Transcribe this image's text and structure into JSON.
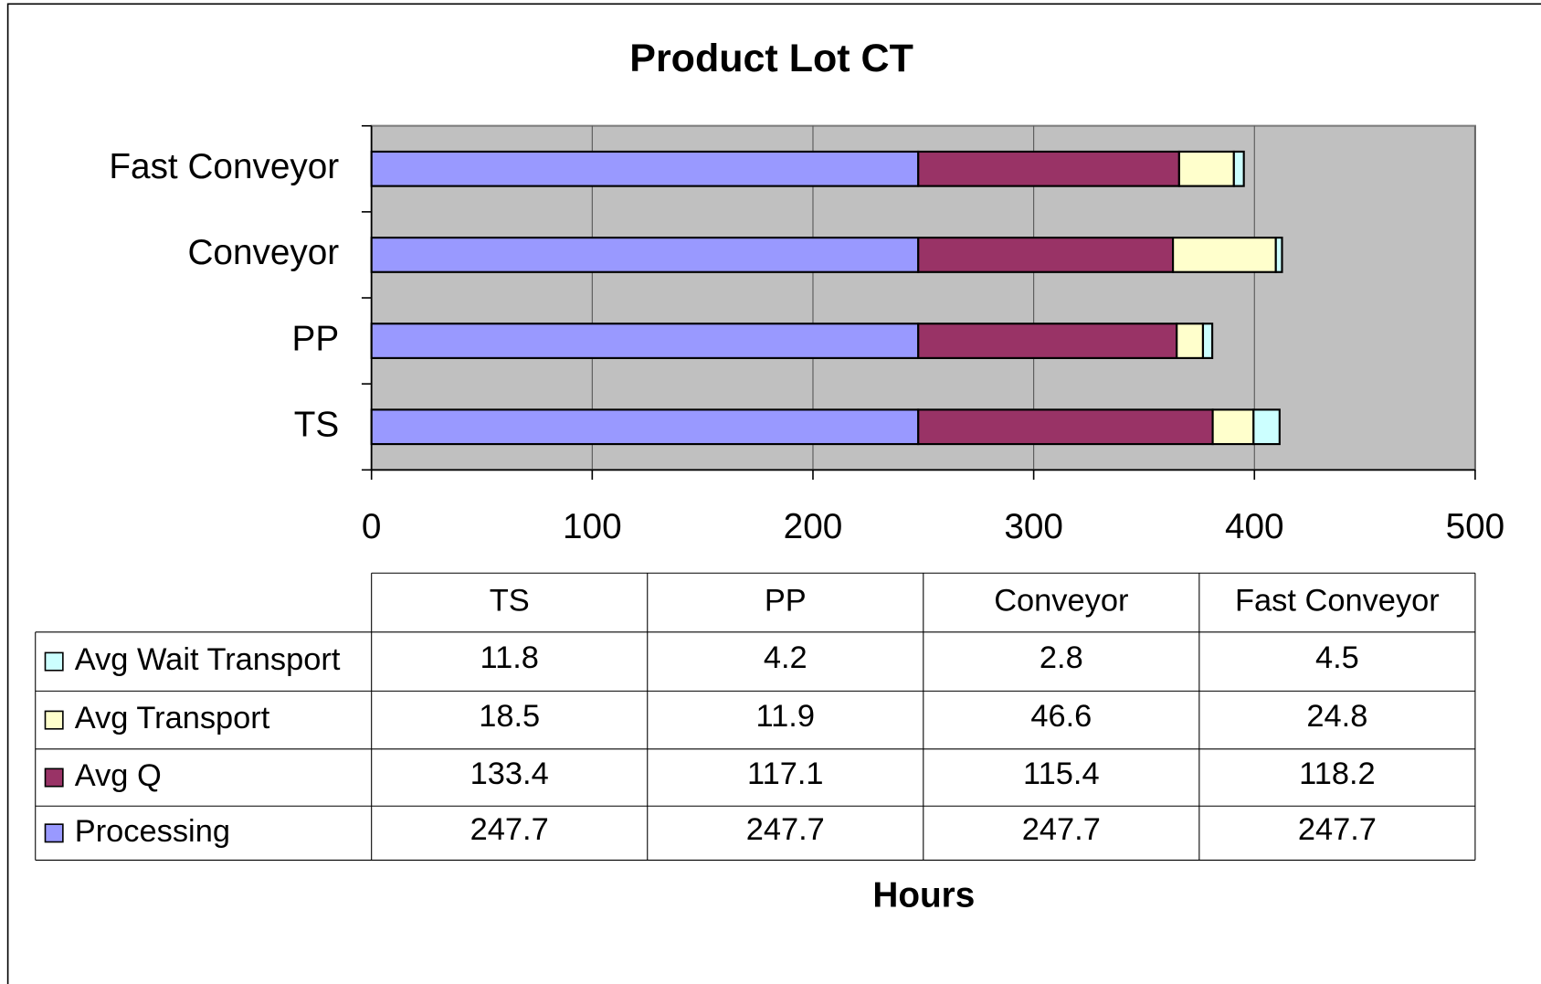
{
  "chart_data": {
    "type": "stacked_bar_horizontal",
    "title": "Product Lot CT",
    "x_label": "Hours",
    "categories": [
      "TS",
      "PP",
      "Conveyor",
      "Fast Conveyor"
    ],
    "series": [
      {
        "name": "Processing",
        "color": "#9999ff",
        "values": [
          247.7,
          247.7,
          247.7,
          247.7
        ]
      },
      {
        "name": "Avg Q",
        "color": "#993366",
        "values": [
          133.4,
          117.1,
          115.4,
          118.2
        ]
      },
      {
        "name": "Avg Transport",
        "color": "#ffffcc",
        "values": [
          18.5,
          11.9,
          46.6,
          24.8
        ]
      },
      {
        "name": "Avg Wait Transport",
        "color": "#ccffff",
        "values": [
          11.8,
          4.2,
          2.8,
          4.5
        ]
      }
    ],
    "xlim": [
      0,
      500
    ],
    "xticks": [
      0,
      100,
      200,
      300,
      400,
      500
    ],
    "grid": true,
    "data_table": true
  }
}
